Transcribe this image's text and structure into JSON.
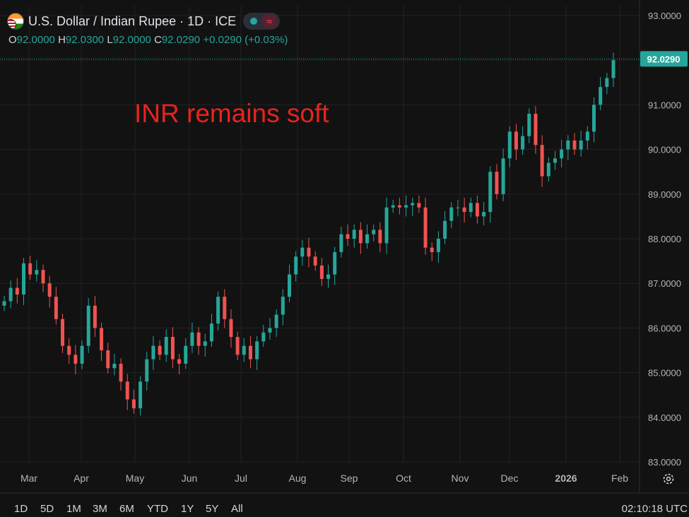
{
  "header": {
    "title": "U.S. Dollar / Indian Rupee · 1D · ICE",
    "ohlc": {
      "o_label": "O",
      "o": "92.0000",
      "h_label": "H",
      "h": "92.0300",
      "l_label": "L",
      "l": "92.0000",
      "c_label": "C",
      "c": "92.0290",
      "change": "+0.0290 (+0.03%)"
    }
  },
  "annotation": "INR remains soft",
  "timeframes": [
    "1D",
    "5D",
    "1M",
    "3M",
    "6M",
    "YTD",
    "1Y",
    "5Y",
    "All"
  ],
  "clock": "02:10:18 UTC",
  "icons": {
    "flag": "usd-inr-flag-icon",
    "status": "market-open-dot-icon",
    "wave": "data-wave-icon",
    "settings": "gear-icon"
  },
  "colors": {
    "background": "#121212",
    "up": "#26a69a",
    "down": "#ef5350",
    "grid": "#222222",
    "annotation": "#e8231f",
    "price_tag": "#26a69a"
  },
  "chart_data": {
    "type": "candlestick",
    "title": "U.S. Dollar / Indian Rupee · 1D · ICE",
    "ylim": [
      83.0,
      93.0
    ],
    "y_ticks": [
      "83.0000",
      "84.0000",
      "85.0000",
      "86.0000",
      "87.0000",
      "88.0000",
      "89.0000",
      "90.0000",
      "91.0000",
      "92.0000",
      "93.0000"
    ],
    "x_ticks": [
      "Mar",
      "Apr",
      "May",
      "Jun",
      "Jul",
      "Aug",
      "Sep",
      "Oct",
      "Nov",
      "Dec",
      "2026",
      "Feb"
    ],
    "last_price_label": "92.0290",
    "last_price": 92.029,
    "grid": true,
    "series": [
      {
        "values": [
          [
            "Mar",
            86.6
          ],
          [
            "",
            86.9
          ],
          [
            "",
            86.75
          ],
          [
            "",
            87.45
          ],
          [
            "",
            87.2
          ],
          [
            "",
            87.3
          ],
          [
            "",
            87.0
          ],
          [
            "",
            86.7
          ],
          [
            "",
            86.2
          ],
          [
            "",
            85.6
          ],
          [
            "Apr",
            85.4
          ],
          [
            "",
            85.2
          ],
          [
            "",
            85.6
          ],
          [
            "",
            86.5
          ],
          [
            "",
            86.0
          ],
          [
            "",
            85.5
          ],
          [
            "",
            85.1
          ],
          [
            "",
            85.2
          ],
          [
            "",
            84.8
          ],
          [
            "",
            84.4
          ],
          [
            "May",
            84.2
          ],
          [
            "",
            84.8
          ],
          [
            "",
            85.3
          ],
          [
            "",
            85.6
          ],
          [
            "",
            85.4
          ],
          [
            "",
            85.8
          ],
          [
            "",
            85.3
          ],
          [
            "",
            85.2
          ],
          [
            "",
            85.6
          ],
          [
            "",
            85.9
          ],
          [
            "Jun",
            85.6
          ],
          [
            "",
            85.7
          ],
          [
            "",
            86.1
          ],
          [
            "",
            86.7
          ],
          [
            "",
            86.2
          ],
          [
            "",
            85.8
          ],
          [
            "",
            85.4
          ],
          [
            "",
            85.6
          ],
          [
            "",
            85.3
          ],
          [
            "",
            85.7
          ],
          [
            "Jul",
            85.9
          ],
          [
            "",
            86.0
          ],
          [
            "",
            86.3
          ],
          [
            "",
            86.7
          ],
          [
            "",
            87.2
          ],
          [
            "",
            87.6
          ],
          [
            "",
            87.8
          ],
          [
            "",
            87.6
          ],
          [
            "",
            87.4
          ],
          [
            "",
            87.1
          ],
          [
            "Aug",
            87.2
          ],
          [
            "",
            87.7
          ],
          [
            "",
            88.1
          ],
          [
            "",
            88.0
          ],
          [
            "",
            88.2
          ],
          [
            "",
            87.9
          ],
          [
            "",
            88.1
          ],
          [
            "",
            88.2
          ],
          [
            "",
            87.9
          ],
          [
            "",
            88.7
          ],
          [
            "Sep",
            88.75
          ],
          [
            "",
            88.7
          ],
          [
            "",
            88.75
          ],
          [
            "",
            88.8
          ],
          [
            "",
            88.7
          ],
          [
            "",
            87.8
          ],
          [
            "",
            87.7
          ],
          [
            "",
            88.0
          ],
          [
            "",
            88.4
          ],
          [
            "",
            88.7
          ],
          [
            "Oct",
            88.7
          ],
          [
            "",
            88.6
          ],
          [
            "",
            88.8
          ],
          [
            "",
            88.5
          ],
          [
            "",
            88.6
          ],
          [
            "",
            89.5
          ],
          [
            "",
            89.0
          ],
          [
            "",
            89.8
          ],
          [
            "",
            90.4
          ],
          [
            "",
            90.0
          ],
          [
            "Nov",
            90.3
          ],
          [
            "",
            90.8
          ],
          [
            "",
            90.1
          ],
          [
            "",
            89.4
          ],
          [
            "",
            89.7
          ],
          [
            "",
            89.8
          ],
          [
            "",
            90.0
          ],
          [
            "",
            90.2
          ],
          [
            "",
            90.0
          ],
          [
            "",
            90.2
          ],
          [
            "Dec",
            90.4
          ],
          [
            "",
            91.0
          ],
          [
            "",
            91.4
          ],
          [
            "",
            91.6
          ],
          [
            "",
            92.0
          ]
        ]
      }
    ]
  }
}
